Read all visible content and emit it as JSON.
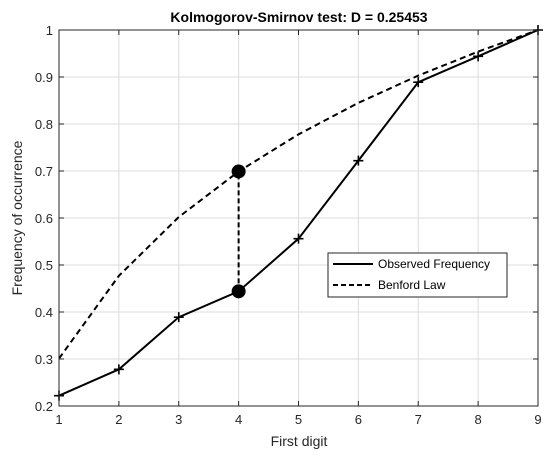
{
  "chart_data": {
    "type": "line",
    "title": "Kolmogorov-Smirnov test: D = 0.25453",
    "xlabel": "First digit",
    "ylabel": "Frequency of occurrence",
    "xlim": [
      1,
      9
    ],
    "ylim": [
      0.2,
      1
    ],
    "xticks": [
      "1",
      "2",
      "3",
      "4",
      "5",
      "6",
      "7",
      "8",
      "9"
    ],
    "yticks": [
      "0.2",
      "0.3",
      "0.4",
      "0.5",
      "0.6",
      "0.7",
      "0.8",
      "0.9",
      "1"
    ],
    "grid": true,
    "legend_position": "right-middle",
    "series": [
      {
        "name": "Observed Frequency",
        "style": "solid-plus-markers",
        "color": "#000000",
        "x": [
          1,
          2,
          3,
          4,
          5,
          6,
          7,
          8,
          9
        ],
        "y": [
          0.222,
          0.278,
          0.389,
          0.444,
          0.556,
          0.722,
          0.889,
          0.944,
          1.0
        ]
      },
      {
        "name": "Benford Law",
        "style": "dashed",
        "color": "#000000",
        "x": [
          1,
          2,
          3,
          4,
          5,
          6,
          7,
          8,
          9
        ],
        "y": [
          0.301,
          0.477,
          0.602,
          0.699,
          0.778,
          0.845,
          0.903,
          0.954,
          1.0
        ]
      }
    ],
    "max_difference": {
      "x": 4,
      "y_from": 0.444,
      "y_to": 0.699,
      "style": "dashed-with-dots"
    }
  }
}
